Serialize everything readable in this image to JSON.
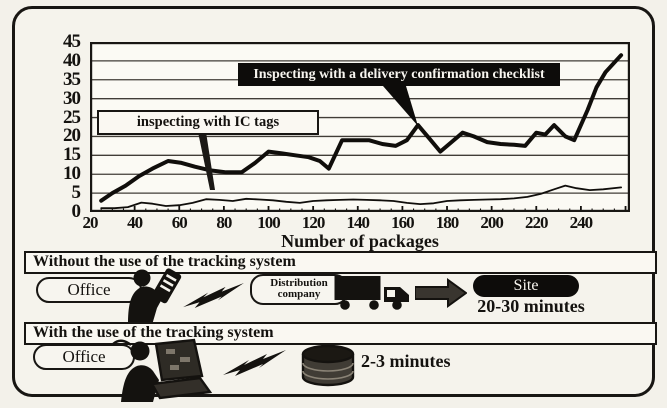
{
  "chart_data": {
    "type": "line",
    "title": "",
    "xlabel": "Number of packages",
    "ylabel": "",
    "xlim": [
      20,
      262
    ],
    "ylim": [
      0,
      45
    ],
    "x_ticks": [
      20,
      40,
      60,
      80,
      100,
      120,
      140,
      160,
      180,
      200,
      220,
      240
    ],
    "y_ticks": [
      0,
      5,
      10,
      15,
      20,
      25,
      30,
      35,
      40,
      45
    ],
    "y_gridlines": [
      5,
      10,
      15,
      20,
      25,
      30,
      35,
      40
    ],
    "grid": "horizontal",
    "legend_position": "callout-labels-on-plot",
    "series": [
      {
        "name": "Inspecting with a delivery confirmation checklist",
        "line": "thick",
        "points": [
          [
            25,
            3
          ],
          [
            30,
            5
          ],
          [
            36,
            7
          ],
          [
            42,
            9.5
          ],
          [
            48,
            11.5
          ],
          [
            55,
            13.5
          ],
          [
            61,
            13
          ],
          [
            67,
            12
          ],
          [
            74,
            11
          ],
          [
            81,
            10.5
          ],
          [
            88,
            10.5
          ],
          [
            94,
            13
          ],
          [
            100,
            16
          ],
          [
            106,
            15.5
          ],
          [
            112,
            15
          ],
          [
            118,
            14.5
          ],
          [
            123,
            13.5
          ],
          [
            127,
            11.5
          ],
          [
            133,
            19
          ],
          [
            139,
            19
          ],
          [
            145,
            19
          ],
          [
            151,
            18
          ],
          [
            157,
            17.5
          ],
          [
            162,
            19
          ],
          [
            167,
            23
          ],
          [
            172,
            19.5
          ],
          [
            177,
            16
          ],
          [
            182,
            18.5
          ],
          [
            187,
            21
          ],
          [
            192,
            20
          ],
          [
            198,
            18.5
          ],
          [
            204,
            18
          ],
          [
            210,
            17.8
          ],
          [
            215,
            17.5
          ],
          [
            220,
            21
          ],
          [
            224,
            20.5
          ],
          [
            228,
            23
          ],
          [
            233,
            20
          ],
          [
            237,
            19
          ],
          [
            243,
            27
          ],
          [
            247,
            33
          ],
          [
            251,
            37
          ],
          [
            258,
            41.5
          ]
        ]
      },
      {
        "name": "inspecting with IC tags",
        "line": "thin",
        "points": [
          [
            25,
            1
          ],
          [
            31,
            1
          ],
          [
            37,
            1.3
          ],
          [
            43,
            2.5
          ],
          [
            48,
            2.2
          ],
          [
            54,
            1.6
          ],
          [
            60,
            1.8
          ],
          [
            66,
            2.4
          ],
          [
            72,
            3.4
          ],
          [
            78,
            3.2
          ],
          [
            84,
            2.9
          ],
          [
            90,
            3.5
          ],
          [
            96,
            3.3
          ],
          [
            102,
            3.1
          ],
          [
            108,
            2.7
          ],
          [
            114,
            2.4
          ],
          [
            120,
            2.9
          ],
          [
            126,
            3.1
          ],
          [
            132,
            3.2
          ],
          [
            138,
            3.3
          ],
          [
            144,
            3.2
          ],
          [
            150,
            3.1
          ],
          [
            156,
            2.9
          ],
          [
            162,
            2.4
          ],
          [
            168,
            2.1
          ],
          [
            174,
            2.3
          ],
          [
            180,
            2.9
          ],
          [
            186,
            3.1
          ],
          [
            192,
            3.2
          ],
          [
            198,
            3.3
          ],
          [
            204,
            3.4
          ],
          [
            210,
            3.6
          ],
          [
            216,
            4
          ],
          [
            222,
            4.8
          ],
          [
            228,
            6
          ],
          [
            233,
            7
          ],
          [
            238,
            6.3
          ],
          [
            244,
            5.8
          ],
          [
            250,
            6
          ],
          [
            258,
            6.5
          ]
        ]
      }
    ]
  },
  "flow_without": {
    "title": "Without the use of the tracking system",
    "office": "Office",
    "distribution_line1": "Distribution",
    "distribution_line2": "company",
    "site": "Site",
    "duration": "20-30 minutes"
  },
  "flow_with": {
    "title": "With the use of the tracking system",
    "office": "Office",
    "duration": "2-3 minutes"
  }
}
